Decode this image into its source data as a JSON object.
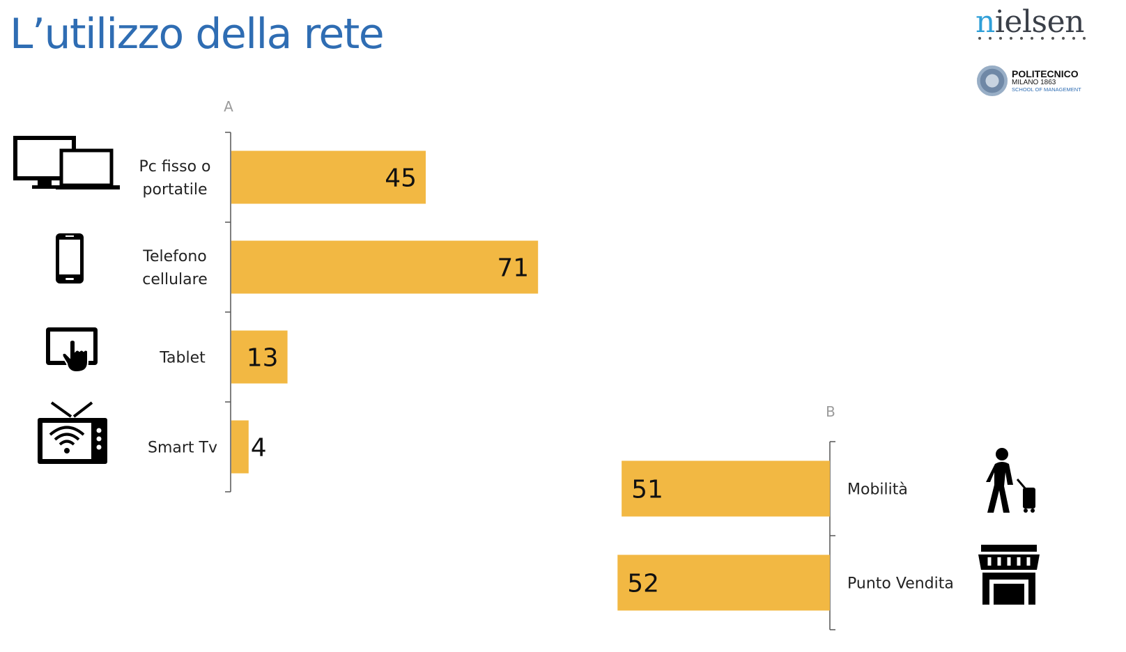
{
  "header": {
    "title": "L’utilizzo della rete"
  },
  "logos": {
    "nielsen": "nielsen",
    "politecnico_line1": "POLITECNICO",
    "politecnico_line2": "MILANO 1863",
    "politecnico_line3": "SCHOOL OF MANAGEMENT"
  },
  "colors": {
    "bar": "#f2b843",
    "title": "#2f6db3",
    "axis": "#555555",
    "panel_label": "#9a9a9a"
  },
  "icons": {
    "pc": "desktop-laptop-icon",
    "phone": "smartphone-icon",
    "tablet": "tablet-touch-icon",
    "tv": "smart-tv-icon",
    "mobility": "traveler-icon",
    "store": "storefront-icon"
  },
  "chart_data": [
    {
      "type": "bar",
      "orientation": "horizontal",
      "panel_label": "A",
      "categories": [
        "Pc fisso o portatile",
        "Telefono cellulare",
        "Tablet",
        "Smart Tv"
      ],
      "category_lines": [
        [
          "Pc fisso o",
          "portatile"
        ],
        [
          "Telefono",
          "cellulare"
        ],
        [
          "Tablet"
        ],
        [
          "Smart Tv"
        ]
      ],
      "values": [
        45,
        71,
        13,
        4
      ],
      "data_labels": [
        "45",
        "71",
        "13",
        "4"
      ]
    },
    {
      "type": "bar",
      "orientation": "horizontal",
      "direction": "leftward",
      "panel_label": "B",
      "categories": [
        "Mobilità",
        "Punto Vendita"
      ],
      "category_lines": [
        [
          "Mobilità"
        ],
        [
          "Punto Vendita"
        ]
      ],
      "values": [
        51,
        52
      ],
      "data_labels": [
        "51",
        "52"
      ]
    }
  ]
}
